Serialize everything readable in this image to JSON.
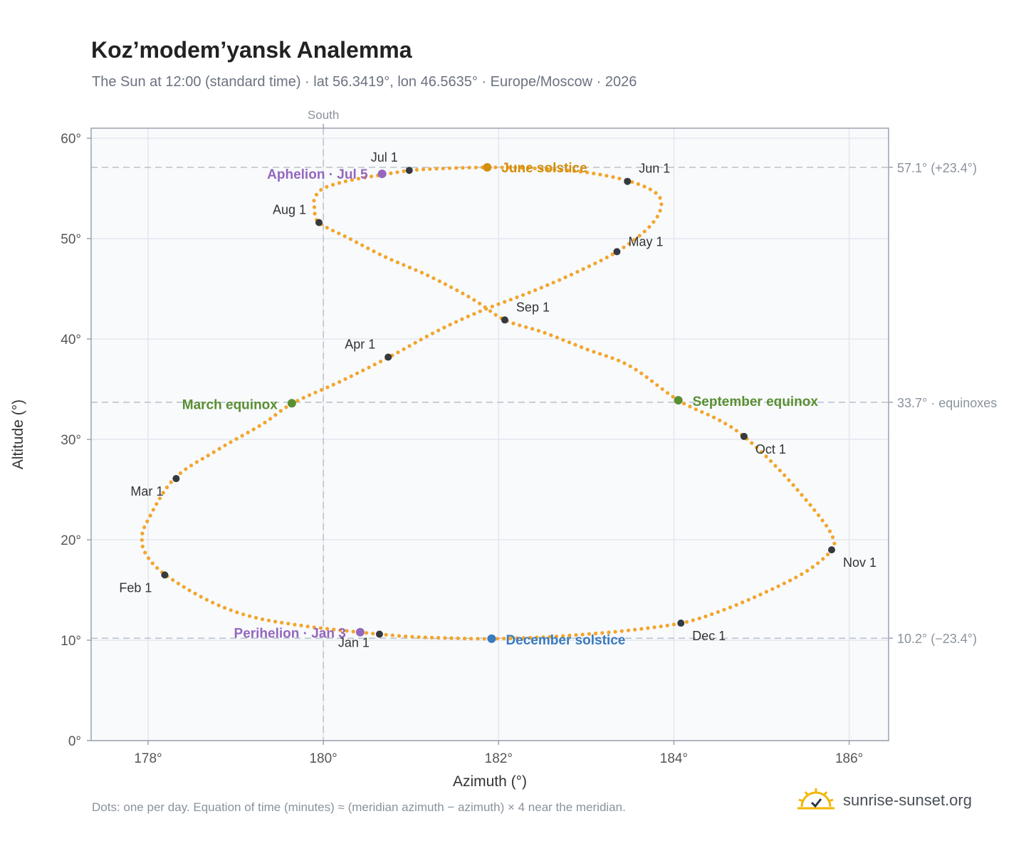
{
  "header": {
    "title": "Koz’modem’yansk Analemma",
    "subtitle": "The Sun at 12:00 (standard time) · lat 56.3419°, lon 46.5635° · Europe/Moscow · 2026"
  },
  "footer": {
    "note": "Dots: one per day. Equation of time (minutes) ≈ (meridian azimuth − azimuth) × 4 near the meridian.",
    "brand": "sunrise-sunset.org",
    "brand_icon": "sun-logo-icon"
  },
  "colors": {
    "path": "#f2a52b",
    "month_marker": "#343a40",
    "solstice_june": "#d48f0c",
    "solstice_december": "#3a7abf",
    "equinox": "#5a8f32",
    "apsis": "#9467bd",
    "grid": "#e3e8ee",
    "plot_bg": "#f8fafc",
    "frame": "#9aa3ae",
    "ref_line": "#b9c1ca"
  },
  "chart_data": {
    "type": "scatter",
    "title": "Koz’modem’yansk Analemma",
    "xlabel": "Azimuth (°)",
    "ylabel": "Altitude (°)",
    "xlim": [
      177.35,
      186.45
    ],
    "ylim": [
      0,
      61
    ],
    "x_ticks": [
      178,
      180,
      182,
      184,
      186
    ],
    "x_tick_labels": [
      "178°",
      "180°",
      "182°",
      "184°",
      "186°"
    ],
    "y_ticks": [
      0,
      10,
      20,
      30,
      40,
      50,
      60
    ],
    "y_tick_labels": [
      "0°",
      "10°",
      "20°",
      "30°",
      "40°",
      "50°",
      "60°"
    ],
    "grid": true,
    "meridian": {
      "x": 180,
      "label": "South"
    },
    "reference_lines": [
      {
        "y": 57.1,
        "label": "57.1° (+23.4°)"
      },
      {
        "y": 33.7,
        "label": "33.7° · equinoxes"
      },
      {
        "y": 10.2,
        "label": "10.2° (−23.4°)"
      }
    ],
    "path_keypoints": [
      [
        180.64,
        10.6
      ],
      [
        180.3,
        10.9
      ],
      [
        179.8,
        11.4
      ],
      [
        179.2,
        12.3
      ],
      [
        178.7,
        13.9
      ],
      [
        178.2,
        16.5
      ],
      [
        177.98,
        18.5
      ],
      [
        177.93,
        20.2
      ],
      [
        178.0,
        22.0
      ],
      [
        178.3,
        26.1
      ],
      [
        178.8,
        29.0
      ],
      [
        179.3,
        31.5
      ],
      [
        179.65,
        33.6
      ],
      [
        180.2,
        35.8
      ],
      [
        180.75,
        38.2
      ],
      [
        181.3,
        40.8
      ],
      [
        181.8,
        42.8
      ],
      [
        182.4,
        44.8
      ],
      [
        182.9,
        46.7
      ],
      [
        183.35,
        48.7
      ],
      [
        183.7,
        51.0
      ],
      [
        183.85,
        53.0
      ],
      [
        183.8,
        54.5
      ],
      [
        183.5,
        55.7
      ],
      [
        183.0,
        56.6
      ],
      [
        182.4,
        57.0
      ],
      [
        181.9,
        57.1
      ],
      [
        181.4,
        57.0
      ],
      [
        181.0,
        56.8
      ],
      [
        180.7,
        56.4
      ],
      [
        180.3,
        55.8
      ],
      [
        180.0,
        55.0
      ],
      [
        179.9,
        54.0
      ],
      [
        179.9,
        53.0
      ],
      [
        179.95,
        51.6
      ],
      [
        180.3,
        50.0
      ],
      [
        180.7,
        48.2
      ],
      [
        181.2,
        46.3
      ],
      [
        181.7,
        44.0
      ],
      [
        182.07,
        41.9
      ],
      [
        182.5,
        40.7
      ],
      [
        183.0,
        39.0
      ],
      [
        183.5,
        37.3
      ],
      [
        184.05,
        33.9
      ],
      [
        184.5,
        32.0
      ],
      [
        184.8,
        30.3
      ],
      [
        185.2,
        27.0
      ],
      [
        185.6,
        23.0
      ],
      [
        185.8,
        20.5
      ],
      [
        185.8,
        19.0
      ],
      [
        185.5,
        16.8
      ],
      [
        185.0,
        14.6
      ],
      [
        184.5,
        12.8
      ],
      [
        184.08,
        11.7
      ],
      [
        183.5,
        11.0
      ],
      [
        183.0,
        10.6
      ],
      [
        182.5,
        10.3
      ],
      [
        181.92,
        10.15
      ],
      [
        181.5,
        10.2
      ],
      [
        181.0,
        10.35
      ],
      [
        180.64,
        10.6
      ]
    ],
    "month_markers": [
      {
        "label": "Jan 1",
        "x": 180.64,
        "y": 10.6
      },
      {
        "label": "Feb 1",
        "x": 178.19,
        "y": 16.5
      },
      {
        "label": "Mar 1",
        "x": 178.32,
        "y": 26.1
      },
      {
        "label": "Apr 1",
        "x": 180.74,
        "y": 38.2
      },
      {
        "label": "May 1",
        "x": 183.35,
        "y": 48.7
      },
      {
        "label": "Jun 1",
        "x": 183.47,
        "y": 55.7
      },
      {
        "label": "Jul 1",
        "x": 180.98,
        "y": 56.8
      },
      {
        "label": "Aug 1",
        "x": 179.95,
        "y": 51.6
      },
      {
        "label": "Sep 1",
        "x": 182.07,
        "y": 41.9
      },
      {
        "label": "Oct 1",
        "x": 184.8,
        "y": 30.3
      },
      {
        "label": "Nov 1",
        "x": 185.8,
        "y": 19.0
      },
      {
        "label": "Dec 1",
        "x": 184.08,
        "y": 11.7
      }
    ],
    "events": [
      {
        "label": "June solstice",
        "x": 181.87,
        "y": 57.1,
        "kind": "solstice_june"
      },
      {
        "label": "December solstice",
        "x": 181.92,
        "y": 10.15,
        "kind": "solstice_december"
      },
      {
        "label": "March equinox",
        "x": 179.64,
        "y": 33.6,
        "kind": "equinox"
      },
      {
        "label": "September equinox",
        "x": 184.05,
        "y": 33.9,
        "kind": "equinox"
      },
      {
        "label": "Aphelion · Jul 5",
        "x": 180.67,
        "y": 56.45,
        "kind": "apsis"
      },
      {
        "label": "Perihelion · Jan 3",
        "x": 180.42,
        "y": 10.8,
        "kind": "apsis"
      }
    ]
  }
}
